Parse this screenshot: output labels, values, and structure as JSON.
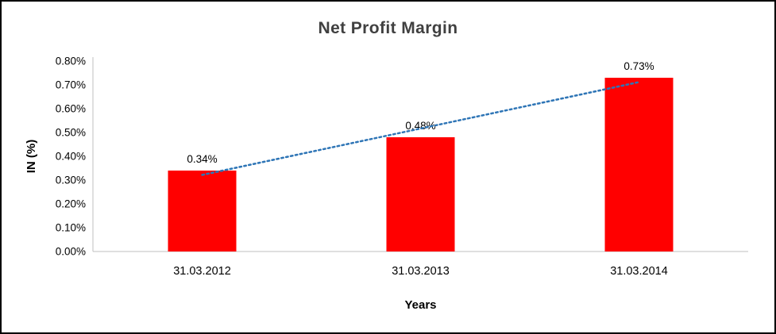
{
  "chart_data": {
    "type": "bar",
    "title": "Net Profit Margin",
    "categories": [
      "31.03.2012",
      "31.03.2013",
      "31.03.2014"
    ],
    "values": [
      0.34,
      0.48,
      0.73
    ],
    "data_labels": [
      "0.34%",
      "0.48%",
      "0.73%"
    ],
    "xlabel": "Years",
    "ylabel": "IN (%)",
    "ylim": [
      0,
      0.8
    ],
    "ytick_step": 0.1,
    "ytick_labels": [
      "0.00%",
      "0.10%",
      "0.20%",
      "0.30%",
      "0.40%",
      "0.50%",
      "0.60%",
      "0.70%",
      "0.80%"
    ],
    "grid": false,
    "legend": null,
    "bar_color": "#FF0000",
    "axis_color": "#BFBFBF",
    "text_color": "#000000",
    "title_color": "#404040",
    "trendline": {
      "type": "linear",
      "style": "dotted",
      "color": "#2E75B6"
    }
  }
}
